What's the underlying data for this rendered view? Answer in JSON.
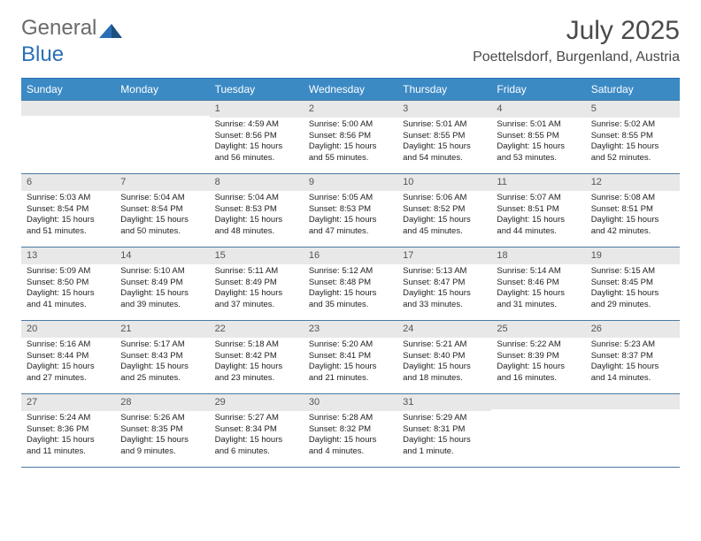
{
  "logo": {
    "text1": "General",
    "text2": "Blue"
  },
  "title": "July 2025",
  "location": "Poettelsdorf, Burgenland, Austria",
  "colors": {
    "header_bg": "#3b8ac4",
    "header_text": "#ffffff",
    "border": "#4a7aa5",
    "daynum_bg": "#e8e8e8",
    "logo_gray": "#6a6a6a",
    "logo_blue": "#2a6fb5"
  },
  "day_names": [
    "Sunday",
    "Monday",
    "Tuesday",
    "Wednesday",
    "Thursday",
    "Friday",
    "Saturday"
  ],
  "weeks": [
    [
      null,
      null,
      {
        "n": "1",
        "sr": "4:59 AM",
        "ss": "8:56 PM",
        "dl": "15 hours and 56 minutes."
      },
      {
        "n": "2",
        "sr": "5:00 AM",
        "ss": "8:56 PM",
        "dl": "15 hours and 55 minutes."
      },
      {
        "n": "3",
        "sr": "5:01 AM",
        "ss": "8:55 PM",
        "dl": "15 hours and 54 minutes."
      },
      {
        "n": "4",
        "sr": "5:01 AM",
        "ss": "8:55 PM",
        "dl": "15 hours and 53 minutes."
      },
      {
        "n": "5",
        "sr": "5:02 AM",
        "ss": "8:55 PM",
        "dl": "15 hours and 52 minutes."
      }
    ],
    [
      {
        "n": "6",
        "sr": "5:03 AM",
        "ss": "8:54 PM",
        "dl": "15 hours and 51 minutes."
      },
      {
        "n": "7",
        "sr": "5:04 AM",
        "ss": "8:54 PM",
        "dl": "15 hours and 50 minutes."
      },
      {
        "n": "8",
        "sr": "5:04 AM",
        "ss": "8:53 PM",
        "dl": "15 hours and 48 minutes."
      },
      {
        "n": "9",
        "sr": "5:05 AM",
        "ss": "8:53 PM",
        "dl": "15 hours and 47 minutes."
      },
      {
        "n": "10",
        "sr": "5:06 AM",
        "ss": "8:52 PM",
        "dl": "15 hours and 45 minutes."
      },
      {
        "n": "11",
        "sr": "5:07 AM",
        "ss": "8:51 PM",
        "dl": "15 hours and 44 minutes."
      },
      {
        "n": "12",
        "sr": "5:08 AM",
        "ss": "8:51 PM",
        "dl": "15 hours and 42 minutes."
      }
    ],
    [
      {
        "n": "13",
        "sr": "5:09 AM",
        "ss": "8:50 PM",
        "dl": "15 hours and 41 minutes."
      },
      {
        "n": "14",
        "sr": "5:10 AM",
        "ss": "8:49 PM",
        "dl": "15 hours and 39 minutes."
      },
      {
        "n": "15",
        "sr": "5:11 AM",
        "ss": "8:49 PM",
        "dl": "15 hours and 37 minutes."
      },
      {
        "n": "16",
        "sr": "5:12 AM",
        "ss": "8:48 PM",
        "dl": "15 hours and 35 minutes."
      },
      {
        "n": "17",
        "sr": "5:13 AM",
        "ss": "8:47 PM",
        "dl": "15 hours and 33 minutes."
      },
      {
        "n": "18",
        "sr": "5:14 AM",
        "ss": "8:46 PM",
        "dl": "15 hours and 31 minutes."
      },
      {
        "n": "19",
        "sr": "5:15 AM",
        "ss": "8:45 PM",
        "dl": "15 hours and 29 minutes."
      }
    ],
    [
      {
        "n": "20",
        "sr": "5:16 AM",
        "ss": "8:44 PM",
        "dl": "15 hours and 27 minutes."
      },
      {
        "n": "21",
        "sr": "5:17 AM",
        "ss": "8:43 PM",
        "dl": "15 hours and 25 minutes."
      },
      {
        "n": "22",
        "sr": "5:18 AM",
        "ss": "8:42 PM",
        "dl": "15 hours and 23 minutes."
      },
      {
        "n": "23",
        "sr": "5:20 AM",
        "ss": "8:41 PM",
        "dl": "15 hours and 21 minutes."
      },
      {
        "n": "24",
        "sr": "5:21 AM",
        "ss": "8:40 PM",
        "dl": "15 hours and 18 minutes."
      },
      {
        "n": "25",
        "sr": "5:22 AM",
        "ss": "8:39 PM",
        "dl": "15 hours and 16 minutes."
      },
      {
        "n": "26",
        "sr": "5:23 AM",
        "ss": "8:37 PM",
        "dl": "15 hours and 14 minutes."
      }
    ],
    [
      {
        "n": "27",
        "sr": "5:24 AM",
        "ss": "8:36 PM",
        "dl": "15 hours and 11 minutes."
      },
      {
        "n": "28",
        "sr": "5:26 AM",
        "ss": "8:35 PM",
        "dl": "15 hours and 9 minutes."
      },
      {
        "n": "29",
        "sr": "5:27 AM",
        "ss": "8:34 PM",
        "dl": "15 hours and 6 minutes."
      },
      {
        "n": "30",
        "sr": "5:28 AM",
        "ss": "8:32 PM",
        "dl": "15 hours and 4 minutes."
      },
      {
        "n": "31",
        "sr": "5:29 AM",
        "ss": "8:31 PM",
        "dl": "15 hours and 1 minute."
      },
      null,
      null
    ]
  ],
  "labels": {
    "sunrise": "Sunrise:",
    "sunset": "Sunset:",
    "daylight": "Daylight:"
  }
}
